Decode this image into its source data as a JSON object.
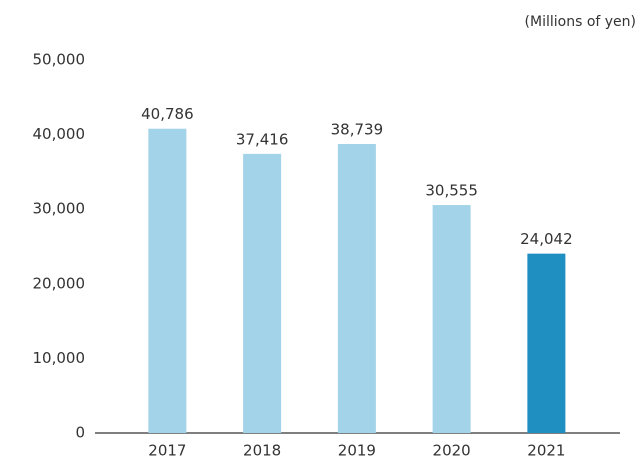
{
  "chart_data": {
    "type": "bar",
    "unit_label": "(Millions of yen)",
    "categories": [
      "2017",
      "2018",
      "2019",
      "2020",
      "2021"
    ],
    "values": [
      40786,
      37416,
      38739,
      30555,
      24042
    ],
    "value_labels": [
      "40,786",
      "37,416",
      "38,739",
      "30,555",
      "24,042"
    ],
    "colors": [
      "#a3d3e8",
      "#a3d3e8",
      "#a3d3e8",
      "#a3d3e8",
      "#1f8fc2"
    ],
    "ylim": [
      0,
      50000
    ],
    "yticks": [
      0,
      {
        "value": 10000,
        "label": "10,000"
      },
      {
        "value": 20000,
        "label": "20,000"
      },
      {
        "value": 30000,
        "label": "30,000"
      },
      {
        "value": 40000,
        "label": "40,000"
      },
      {
        "value": 50000,
        "label": "50,000"
      }
    ],
    "grid": false
  }
}
